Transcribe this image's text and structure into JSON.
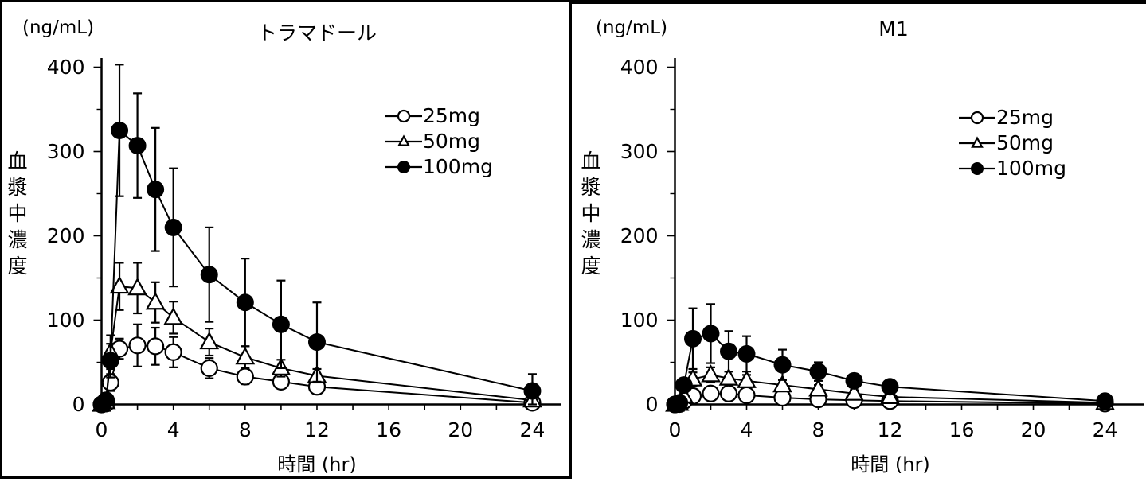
{
  "page": {
    "background": "#ffffff",
    "line_color": "#000000"
  },
  "chart_data": [
    {
      "type": "line",
      "title": "トラマドール",
      "unit_label": "(ng/mL)",
      "ylabel": "血漿中濃度",
      "xlabel": "時間 (hr)",
      "xlim": [
        0,
        24
      ],
      "ylim": [
        0,
        400
      ],
      "x_ticks": [
        0,
        4,
        8,
        12,
        16,
        20,
        24
      ],
      "x_minor_step": 2,
      "y_ticks": [
        0,
        100,
        200,
        300,
        400
      ],
      "y_minor_step": 50,
      "grid": false,
      "legend_position": "upper-right-inside",
      "times": [
        0,
        0.25,
        0.5,
        1,
        2,
        3,
        4,
        6,
        8,
        10,
        12,
        24
      ],
      "series": [
        {
          "name": "25mg",
          "marker": "open-circle",
          "values": [
            0,
            1,
            26,
            66,
            70,
            69,
            62,
            43,
            33,
            27,
            21,
            2
          ],
          "errors": [
            0,
            1,
            10,
            12,
            25,
            22,
            18,
            12,
            9,
            8,
            7,
            2
          ]
        },
        {
          "name": "50mg",
          "marker": "open-triangle",
          "values": [
            0,
            3,
            62,
            140,
            138,
            121,
            103,
            74,
            56,
            43,
            34,
            5
          ],
          "errors": [
            0,
            2,
            20,
            28,
            30,
            24,
            19,
            16,
            13,
            10,
            8,
            3
          ]
        },
        {
          "name": "100mg",
          "marker": "filled-circle",
          "values": [
            0,
            5,
            52,
            325,
            307,
            255,
            210,
            154,
            121,
            95,
            74,
            16
          ],
          "errors": [
            0,
            3,
            20,
            78,
            62,
            73,
            70,
            56,
            52,
            52,
            47,
            20
          ]
        }
      ]
    },
    {
      "type": "line",
      "title": "M1",
      "unit_label": "(ng/mL)",
      "ylabel": "血漿中濃度",
      "xlabel": "時間 (hr)",
      "xlim": [
        0,
        24
      ],
      "ylim": [
        0,
        400
      ],
      "x_ticks": [
        0,
        4,
        8,
        12,
        16,
        20,
        24
      ],
      "x_minor_step": 2,
      "y_ticks": [
        0,
        100,
        200,
        300,
        400
      ],
      "y_minor_step": 50,
      "grid": false,
      "legend_position": "upper-right-inside",
      "times": [
        0,
        0.25,
        0.5,
        1,
        2,
        3,
        4,
        6,
        8,
        10,
        12,
        24
      ],
      "series": [
        {
          "name": "25mg",
          "marker": "open-circle",
          "values": [
            0,
            0.5,
            4,
            10,
            13,
            13,
            11,
            8,
            6,
            5,
            4,
            1
          ],
          "errors": [
            0,
            0.5,
            2,
            4,
            5,
            5,
            4,
            3,
            3,
            2,
            2,
            1
          ]
        },
        {
          "name": "50mg",
          "marker": "open-triangle",
          "values": [
            0,
            1,
            10,
            30,
            35,
            31,
            28,
            23,
            18,
            13,
            9,
            2
          ],
          "errors": [
            0,
            1,
            4,
            8,
            9,
            8,
            7,
            6,
            5,
            4,
            3,
            1
          ]
        },
        {
          "name": "100mg",
          "marker": "filled-circle",
          "values": [
            0,
            2,
            23,
            78,
            84,
            63,
            60,
            47,
            39,
            28,
            21,
            4
          ],
          "errors": [
            0,
            1,
            8,
            36,
            35,
            24,
            21,
            18,
            11,
            7,
            5,
            2
          ]
        }
      ]
    }
  ]
}
